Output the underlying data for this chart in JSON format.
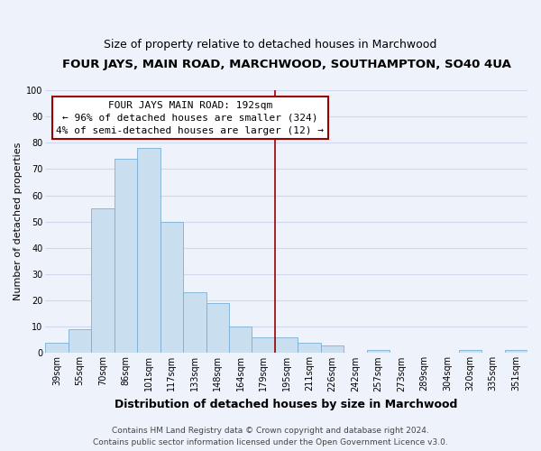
{
  "title": "FOUR JAYS, MAIN ROAD, MARCHWOOD, SOUTHAMPTON, SO40 4UA",
  "subtitle": "Size of property relative to detached houses in Marchwood",
  "xlabel": "Distribution of detached houses by size in Marchwood",
  "ylabel": "Number of detached properties",
  "bar_labels": [
    "39sqm",
    "55sqm",
    "70sqm",
    "86sqm",
    "101sqm",
    "117sqm",
    "133sqm",
    "148sqm",
    "164sqm",
    "179sqm",
    "195sqm",
    "211sqm",
    "226sqm",
    "242sqm",
    "257sqm",
    "273sqm",
    "289sqm",
    "304sqm",
    "320sqm",
    "335sqm",
    "351sqm"
  ],
  "bar_values": [
    4,
    9,
    55,
    74,
    78,
    50,
    23,
    19,
    10,
    6,
    6,
    4,
    3,
    0,
    1,
    0,
    0,
    0,
    1,
    0,
    1
  ],
  "bar_color": "#c9dff0",
  "bar_edge_color": "#7bafd4",
  "vline_color": "#990000",
  "annotation_title": "FOUR JAYS MAIN ROAD: 192sqm",
  "annotation_line1": "← 96% of detached houses are smaller (324)",
  "annotation_line2": "4% of semi-detached houses are larger (12) →",
  "annotation_box_color": "#ffffff",
  "annotation_box_edge": "#990000",
  "ylim": [
    0,
    100
  ],
  "yticks": [
    0,
    10,
    20,
    30,
    40,
    50,
    60,
    70,
    80,
    90,
    100
  ],
  "footer_line1": "Contains HM Land Registry data © Crown copyright and database right 2024.",
  "footer_line2": "Contains public sector information licensed under the Open Government Licence v3.0.",
  "bg_color": "#eef2fa",
  "grid_color": "#d0d8ee",
  "title_fontsize": 9.5,
  "subtitle_fontsize": 9,
  "xlabel_fontsize": 9,
  "ylabel_fontsize": 8,
  "tick_fontsize": 7,
  "annotation_fontsize": 8,
  "footer_fontsize": 6.5,
  "vline_index": 9.5
}
